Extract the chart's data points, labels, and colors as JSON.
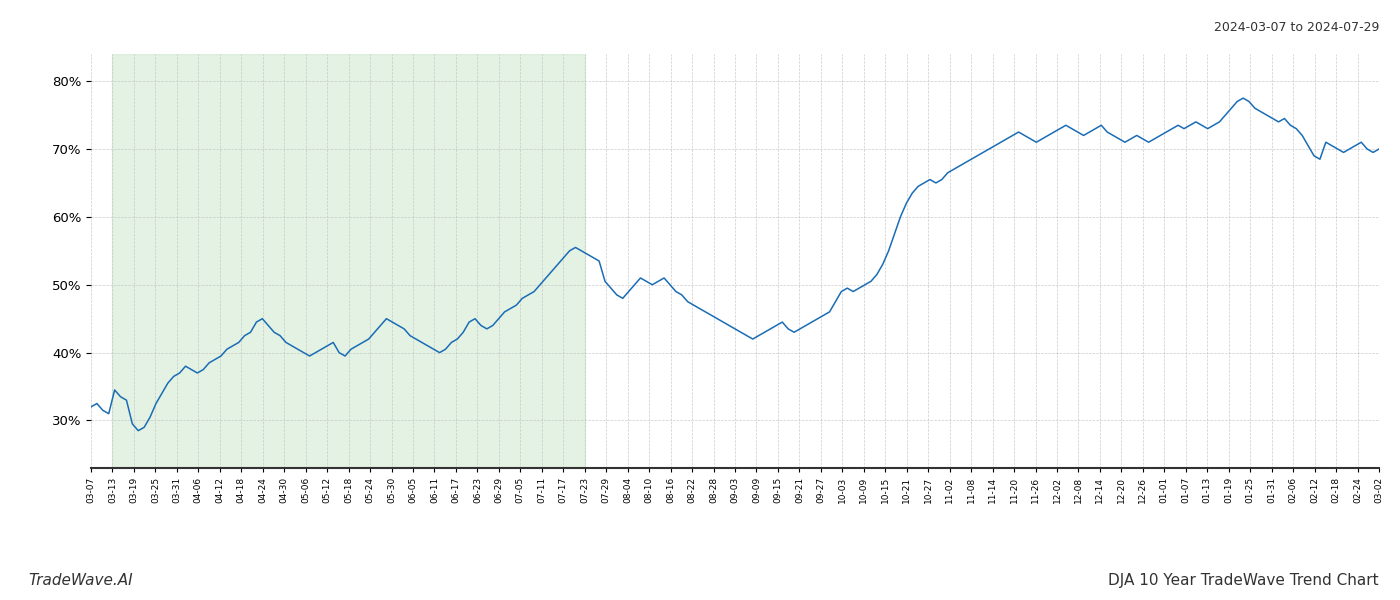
{
  "title_top_right": "2024-03-07 to 2024-07-29",
  "title_bottom_right": "DJA 10 Year TradeWave Trend Chart",
  "title_bottom_left": "TradeWave.AI",
  "line_color": "#1a6cb5",
  "line_width": 1.1,
  "shade_color": "#c8e6c8",
  "shade_alpha": 0.5,
  "background_color": "#ffffff",
  "grid_color": "#c0c0c0",
  "ylim": [
    23,
    84
  ],
  "yticks": [
    30,
    40,
    50,
    60,
    70,
    80
  ],
  "x_labels": [
    "03-07",
    "03-13",
    "03-19",
    "03-25",
    "03-31",
    "04-06",
    "04-12",
    "04-18",
    "04-24",
    "04-30",
    "05-06",
    "05-12",
    "05-18",
    "05-24",
    "05-30",
    "06-05",
    "06-11",
    "06-17",
    "06-23",
    "06-29",
    "07-05",
    "07-11",
    "07-17",
    "07-23",
    "07-29",
    "08-04",
    "08-10",
    "08-16",
    "08-22",
    "08-28",
    "09-03",
    "09-09",
    "09-15",
    "09-21",
    "09-27",
    "10-03",
    "10-09",
    "10-15",
    "10-21",
    "10-27",
    "11-02",
    "11-08",
    "11-14",
    "11-20",
    "11-26",
    "12-02",
    "12-08",
    "12-14",
    "12-20",
    "12-26",
    "01-01",
    "01-07",
    "01-13",
    "01-19",
    "01-25",
    "01-31",
    "02-06",
    "02-12",
    "02-18",
    "02-24",
    "03-02"
  ],
  "shade_start_label": "03-13",
  "shade_end_label": "07-23",
  "y_values": [
    32.0,
    32.5,
    31.5,
    31.0,
    34.5,
    33.5,
    33.0,
    29.5,
    28.5,
    29.0,
    30.5,
    32.5,
    34.0,
    35.5,
    36.5,
    37.0,
    38.0,
    37.5,
    37.0,
    37.5,
    38.5,
    39.0,
    39.5,
    40.5,
    41.0,
    41.5,
    42.5,
    43.0,
    44.5,
    45.0,
    44.0,
    43.0,
    42.5,
    41.5,
    41.0,
    40.5,
    40.0,
    39.5,
    40.0,
    40.5,
    41.0,
    41.5,
    40.0,
    39.5,
    40.5,
    41.0,
    41.5,
    42.0,
    43.0,
    44.0,
    45.0,
    44.5,
    44.0,
    43.5,
    42.5,
    42.0,
    41.5,
    41.0,
    40.5,
    40.0,
    40.5,
    41.5,
    42.0,
    43.0,
    44.5,
    45.0,
    44.0,
    43.5,
    44.0,
    45.0,
    46.0,
    46.5,
    47.0,
    48.0,
    48.5,
    49.0,
    50.0,
    51.0,
    52.0,
    53.0,
    54.0,
    55.0,
    55.5,
    55.0,
    54.5,
    54.0,
    53.5,
    50.5,
    49.5,
    48.5,
    48.0,
    49.0,
    50.0,
    51.0,
    50.5,
    50.0,
    50.5,
    51.0,
    50.0,
    49.0,
    48.5,
    47.5,
    47.0,
    46.5,
    46.0,
    45.5,
    45.0,
    44.5,
    44.0,
    43.5,
    43.0,
    42.5,
    42.0,
    42.5,
    43.0,
    43.5,
    44.0,
    44.5,
    43.5,
    43.0,
    43.5,
    44.0,
    44.5,
    45.0,
    45.5,
    46.0,
    47.5,
    49.0,
    49.5,
    49.0,
    49.5,
    50.0,
    50.5,
    51.5,
    53.0,
    55.0,
    57.5,
    60.0,
    62.0,
    63.5,
    64.5,
    65.0,
    65.5,
    65.0,
    65.5,
    66.5,
    67.0,
    67.5,
    68.0,
    68.5,
    69.0,
    69.5,
    70.0,
    70.5,
    71.0,
    71.5,
    72.0,
    72.5,
    72.0,
    71.5,
    71.0,
    71.5,
    72.0,
    72.5,
    73.0,
    73.5,
    73.0,
    72.5,
    72.0,
    72.5,
    73.0,
    73.5,
    72.5,
    72.0,
    71.5,
    71.0,
    71.5,
    72.0,
    71.5,
    71.0,
    71.5,
    72.0,
    72.5,
    73.0,
    73.5,
    73.0,
    73.5,
    74.0,
    73.5,
    73.0,
    73.5,
    74.0,
    75.0,
    76.0,
    77.0,
    77.5,
    77.0,
    76.0,
    75.5,
    75.0,
    74.5,
    74.0,
    74.5,
    73.5,
    73.0,
    72.0,
    70.5,
    69.0,
    68.5,
    71.0,
    70.5,
    70.0,
    69.5,
    70.0,
    70.5,
    71.0,
    70.0,
    69.5,
    70.0
  ]
}
